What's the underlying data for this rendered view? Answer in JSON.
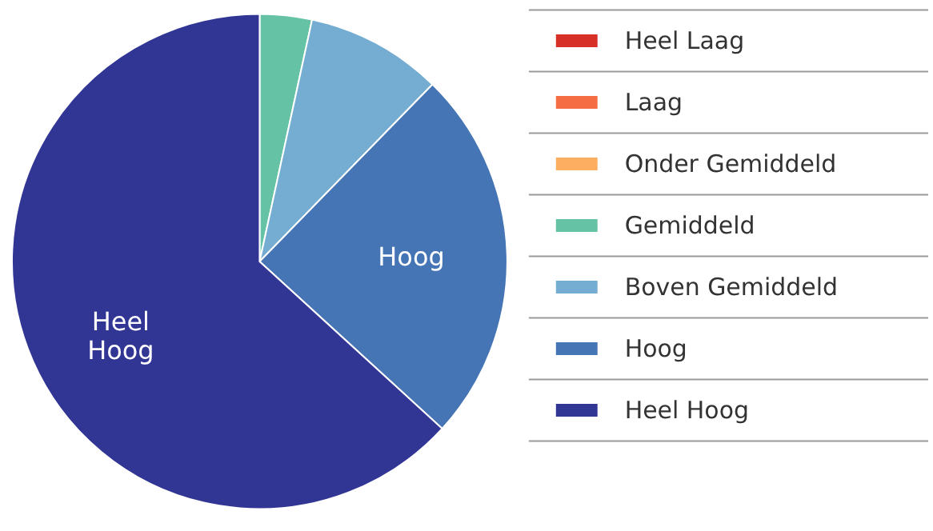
{
  "chart_data": {
    "type": "pie",
    "categories": [
      "Heel Laag",
      "Laag",
      "Onder Gemiddeld",
      "Gemiddeld",
      "Boven Gemiddeld",
      "Hoog",
      "Heel Hoog"
    ],
    "values": [
      0,
      0,
      0,
      3.4,
      8.9,
      24.5,
      63.2
    ],
    "colors": [
      "#d73027",
      "#f46d43",
      "#fdae61",
      "#66c2a5",
      "#74add1",
      "#4575b4",
      "#313695"
    ],
    "value_labels": [
      null,
      null,
      null,
      null,
      null,
      "Hoog",
      "Heel Hoog"
    ],
    "legend": "right"
  }
}
